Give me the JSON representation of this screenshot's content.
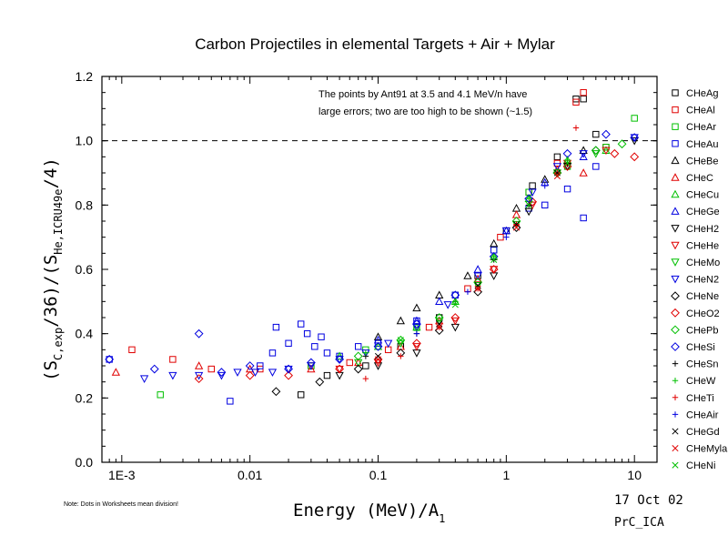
{
  "chart_data": {
    "type": "scatter",
    "title": "Carbon Projectiles in elemental Targets + Air + Mylar",
    "xlabel_main": "Energy (MeV)/A",
    "xlabel_sub": "1",
    "ylabel_parts": {
      "open": "(S",
      "sub1": "C,exp",
      "mid": "/36)/(S",
      "sub2": "He,ICRU49e",
      "close": "/4)"
    },
    "x_scale": "log",
    "xlim": [
      0.0007,
      15
    ],
    "ylim": [
      0.0,
      1.2
    ],
    "x_ticks": [
      {
        "v": 0.001,
        "label": "1E-3"
      },
      {
        "v": 0.01,
        "label": "0.01"
      },
      {
        "v": 0.1,
        "label": "0.1"
      },
      {
        "v": 1,
        "label": "1"
      },
      {
        "v": 10,
        "label": "10"
      }
    ],
    "y_ticks": [
      {
        "v": 0.0,
        "label": "0.0"
      },
      {
        "v": 0.2,
        "label": "0.2"
      },
      {
        "v": 0.4,
        "label": "0.4"
      },
      {
        "v": 0.6,
        "label": "0.6"
      },
      {
        "v": 0.8,
        "label": "0.8"
      },
      {
        "v": 1.0,
        "label": "1.0"
      },
      {
        "v": 1.2,
        "label": "1.2"
      }
    ],
    "reference_line": 1.0,
    "annotation": [
      "The points by Ant91 at 3.5 and 4.1 MeV/n have",
      "large errors; two are too high to be shown (~1.5)"
    ],
    "note": "Note: Dots in Worksheets mean division!",
    "date": "17 Oct 02",
    "file_id": "PrC_ICA",
    "legend_position": "right",
    "series": [
      {
        "name": "CHeAg",
        "marker": "square",
        "color": "#000000",
        "points": [
          [
            0.025,
            0.21
          ],
          [
            0.04,
            0.27
          ],
          [
            0.08,
            0.3
          ],
          [
            0.15,
            0.36
          ],
          [
            0.3,
            0.45
          ],
          [
            0.6,
            0.58
          ],
          [
            1.0,
            0.72
          ],
          [
            1.6,
            0.86
          ],
          [
            2.5,
            0.95
          ],
          [
            3.5,
            1.13
          ],
          [
            4.0,
            1.13
          ],
          [
            5.0,
            1.02
          ]
        ]
      },
      {
        "name": "CHeAl",
        "marker": "square",
        "color": "#e00000",
        "points": [
          [
            0.0012,
            0.35
          ],
          [
            0.0025,
            0.32
          ],
          [
            0.005,
            0.29
          ],
          [
            0.012,
            0.29
          ],
          [
            0.03,
            0.3
          ],
          [
            0.06,
            0.31
          ],
          [
            0.12,
            0.35
          ],
          [
            0.25,
            0.42
          ],
          [
            0.5,
            0.54
          ],
          [
            0.9,
            0.7
          ],
          [
            1.5,
            0.84
          ],
          [
            2.5,
            0.93
          ],
          [
            3.5,
            1.12
          ],
          [
            4.0,
            1.15
          ],
          [
            6.0,
            0.98
          ]
        ]
      },
      {
        "name": "CHeAr",
        "marker": "square",
        "color": "#00c000",
        "points": [
          [
            0.002,
            0.21
          ],
          [
            0.03,
            0.3
          ],
          [
            0.08,
            0.35
          ],
          [
            0.2,
            0.42
          ],
          [
            0.4,
            0.52
          ],
          [
            0.8,
            0.66
          ],
          [
            1.5,
            0.84
          ],
          [
            3.0,
            0.92
          ],
          [
            6.0,
            0.98
          ],
          [
            10.0,
            1.07
          ]
        ]
      },
      {
        "name": "CHeAu",
        "marker": "square",
        "color": "#0000e0",
        "points": [
          [
            0.0008,
            0.32
          ],
          [
            0.007,
            0.19
          ],
          [
            0.012,
            0.3
          ],
          [
            0.015,
            0.34
          ],
          [
            0.016,
            0.42
          ],
          [
            0.02,
            0.37
          ],
          [
            0.025,
            0.43
          ],
          [
            0.028,
            0.4
          ],
          [
            0.032,
            0.36
          ],
          [
            0.036,
            0.39
          ],
          [
            0.04,
            0.34
          ],
          [
            0.05,
            0.33
          ],
          [
            0.07,
            0.36
          ],
          [
            0.1,
            0.37
          ],
          [
            0.2,
            0.44
          ],
          [
            0.4,
            0.52
          ],
          [
            0.8,
            0.66
          ],
          [
            1.5,
            0.79
          ],
          [
            2.0,
            0.8
          ],
          [
            3.0,
            0.85
          ],
          [
            4.0,
            0.76
          ],
          [
            5.0,
            0.92
          ]
        ]
      },
      {
        "name": "CHeBe",
        "marker": "triangle-up",
        "color": "#000000",
        "points": [
          [
            0.1,
            0.39
          ],
          [
            0.15,
            0.44
          ],
          [
            0.2,
            0.48
          ],
          [
            0.3,
            0.52
          ],
          [
            0.5,
            0.58
          ],
          [
            0.8,
            0.68
          ],
          [
            1.2,
            0.79
          ],
          [
            2.0,
            0.88
          ],
          [
            4.0,
            0.97
          ]
        ]
      },
      {
        "name": "CHeC",
        "marker": "triangle-up",
        "color": "#e00000",
        "points": [
          [
            0.0009,
            0.28
          ],
          [
            0.004,
            0.3
          ],
          [
            0.01,
            0.29
          ],
          [
            0.03,
            0.29
          ],
          [
            0.07,
            0.31
          ],
          [
            0.15,
            0.36
          ],
          [
            0.3,
            0.44
          ],
          [
            0.6,
            0.57
          ],
          [
            1.2,
            0.77
          ],
          [
            2.5,
            0.91
          ],
          [
            4.0,
            0.9
          ]
        ]
      },
      {
        "name": "CHeCu",
        "marker": "triangle-up",
        "color": "#00c000",
        "points": [
          [
            0.05,
            0.33
          ],
          [
            0.1,
            0.36
          ],
          [
            0.2,
            0.42
          ],
          [
            0.4,
            0.5
          ],
          [
            0.8,
            0.64
          ],
          [
            1.5,
            0.82
          ],
          [
            3.0,
            0.94
          ],
          [
            6.0,
            0.97
          ]
        ]
      },
      {
        "name": "CHeGe",
        "marker": "triangle-up",
        "color": "#0000e0",
        "points": [
          [
            0.1,
            0.38
          ],
          [
            0.2,
            0.44
          ],
          [
            0.3,
            0.5
          ],
          [
            0.6,
            0.6
          ],
          [
            1.0,
            0.72
          ],
          [
            2.0,
            0.87
          ],
          [
            4.0,
            0.95
          ]
        ]
      },
      {
        "name": "CHeH2",
        "marker": "triangle-down",
        "color": "#000000",
        "points": [
          [
            0.05,
            0.27
          ],
          [
            0.1,
            0.3
          ],
          [
            0.2,
            0.34
          ],
          [
            0.4,
            0.42
          ],
          [
            0.8,
            0.58
          ],
          [
            1.5,
            0.78
          ],
          [
            3.0,
            0.92
          ],
          [
            10.0,
            1.0
          ]
        ]
      },
      {
        "name": "CHeHe",
        "marker": "triangle-down",
        "color": "#e00000",
        "points": [
          [
            0.05,
            0.29
          ],
          [
            0.1,
            0.31
          ],
          [
            0.2,
            0.36
          ],
          [
            0.4,
            0.44
          ],
          [
            0.8,
            0.6
          ],
          [
            1.6,
            0.8
          ],
          [
            3.0,
            0.93
          ],
          [
            6.0,
            0.97
          ]
        ]
      },
      {
        "name": "CHeMo",
        "marker": "triangle-down",
        "color": "#00c000",
        "points": [
          [
            0.07,
            0.31
          ],
          [
            0.15,
            0.37
          ],
          [
            0.3,
            0.44
          ],
          [
            0.6,
            0.55
          ],
          [
            1.2,
            0.74
          ],
          [
            2.5,
            0.9
          ],
          [
            5.0,
            0.96
          ]
        ]
      },
      {
        "name": "CHeN2",
        "marker": "triangle-down",
        "color": "#0000e0",
        "points": [
          [
            0.0015,
            0.26
          ],
          [
            0.0025,
            0.27
          ],
          [
            0.004,
            0.27
          ],
          [
            0.006,
            0.27
          ],
          [
            0.008,
            0.28
          ],
          [
            0.011,
            0.28
          ],
          [
            0.015,
            0.28
          ],
          [
            0.02,
            0.29
          ],
          [
            0.03,
            0.3
          ],
          [
            0.05,
            0.32
          ],
          [
            0.08,
            0.34
          ],
          [
            0.12,
            0.37
          ],
          [
            0.2,
            0.42
          ],
          [
            0.35,
            0.49
          ],
          [
            0.6,
            0.58
          ],
          [
            1.0,
            0.72
          ],
          [
            1.6,
            0.84
          ],
          [
            2.5,
            0.92
          ],
          [
            4.0,
            0.96
          ],
          [
            10.0,
            1.01
          ]
        ]
      },
      {
        "name": "CHeNe",
        "marker": "diamond",
        "color": "#000000",
        "points": [
          [
            0.016,
            0.22
          ],
          [
            0.035,
            0.25
          ],
          [
            0.07,
            0.29
          ],
          [
            0.15,
            0.34
          ],
          [
            0.3,
            0.41
          ],
          [
            0.6,
            0.53
          ],
          [
            1.2,
            0.73
          ],
          [
            2.5,
            0.9
          ],
          [
            5.0,
            0.97
          ]
        ]
      },
      {
        "name": "CHeO2",
        "marker": "diamond",
        "color": "#e00000",
        "points": [
          [
            0.004,
            0.26
          ],
          [
            0.01,
            0.27
          ],
          [
            0.02,
            0.27
          ],
          [
            0.05,
            0.29
          ],
          [
            0.1,
            0.32
          ],
          [
            0.2,
            0.37
          ],
          [
            0.4,
            0.45
          ],
          [
            0.8,
            0.6
          ],
          [
            1.6,
            0.81
          ],
          [
            3.0,
            0.92
          ],
          [
            7.0,
            0.96
          ],
          [
            10.0,
            0.95
          ]
        ]
      },
      {
        "name": "CHePb",
        "marker": "diamond",
        "color": "#00c000",
        "points": [
          [
            0.07,
            0.33
          ],
          [
            0.15,
            0.38
          ],
          [
            0.3,
            0.45
          ],
          [
            0.6,
            0.56
          ],
          [
            1.2,
            0.75
          ],
          [
            2.5,
            0.9
          ],
          [
            5.0,
            0.97
          ],
          [
            8.0,
            0.99
          ]
        ]
      },
      {
        "name": "CHeSi",
        "marker": "diamond",
        "color": "#0000e0",
        "points": [
          [
            0.0008,
            0.32
          ],
          [
            0.0018,
            0.29
          ],
          [
            0.004,
            0.4
          ],
          [
            0.006,
            0.28
          ],
          [
            0.01,
            0.3
          ],
          [
            0.02,
            0.29
          ],
          [
            0.03,
            0.31
          ],
          [
            0.05,
            0.32
          ],
          [
            0.1,
            0.36
          ],
          [
            0.2,
            0.43
          ],
          [
            0.4,
            0.52
          ],
          [
            0.8,
            0.64
          ],
          [
            1.5,
            0.82
          ],
          [
            3.0,
            0.96
          ],
          [
            6.0,
            1.02
          ],
          [
            10.0,
            1.01
          ]
        ]
      },
      {
        "name": "CHeSn",
        "marker": "plus",
        "color": "#000000",
        "points": [
          [
            0.08,
            0.33
          ],
          [
            0.2,
            0.4
          ],
          [
            0.4,
            0.5
          ],
          [
            0.8,
            0.63
          ],
          [
            1.5,
            0.8
          ],
          [
            3.0,
            0.93
          ]
        ]
      },
      {
        "name": "CHeW",
        "marker": "plus",
        "color": "#00c000",
        "points": [
          [
            0.08,
            0.34
          ],
          [
            0.2,
            0.41
          ],
          [
            0.4,
            0.5
          ],
          [
            0.8,
            0.64
          ],
          [
            1.5,
            0.82
          ],
          [
            3.0,
            0.94
          ]
        ]
      },
      {
        "name": "CHeTi",
        "marker": "plus",
        "color": "#e00000",
        "points": [
          [
            0.08,
            0.26
          ],
          [
            0.15,
            0.33
          ],
          [
            0.3,
            0.42
          ],
          [
            0.6,
            0.54
          ],
          [
            1.2,
            0.74
          ],
          [
            2.5,
            0.9
          ],
          [
            3.5,
            1.04
          ]
        ]
      },
      {
        "name": "CHeAir",
        "marker": "plus",
        "color": "#0000e0",
        "points": [
          [
            0.2,
            0.4
          ],
          [
            0.5,
            0.53
          ],
          [
            1.0,
            0.7
          ],
          [
            2.0,
            0.86
          ]
        ]
      },
      {
        "name": "CHeGd",
        "marker": "cross",
        "color": "#000000",
        "points": [
          [
            0.1,
            0.33
          ],
          [
            0.3,
            0.43
          ],
          [
            0.6,
            0.55
          ],
          [
            1.2,
            0.74
          ],
          [
            2.5,
            0.9
          ]
        ]
      },
      {
        "name": "CHeMyla",
        "marker": "cross",
        "color": "#e00000",
        "points": [
          [
            0.1,
            0.32
          ],
          [
            0.3,
            0.42
          ],
          [
            0.6,
            0.54
          ],
          [
            1.2,
            0.73
          ],
          [
            2.5,
            0.89
          ]
        ]
      },
      {
        "name": "CHeNi",
        "marker": "cross",
        "color": "#00c000",
        "points": [
          [
            0.15,
            0.38
          ],
          [
            0.4,
            0.49
          ],
          [
            0.8,
            0.63
          ],
          [
            1.5,
            0.8
          ],
          [
            3.0,
            0.93
          ]
        ]
      }
    ]
  }
}
